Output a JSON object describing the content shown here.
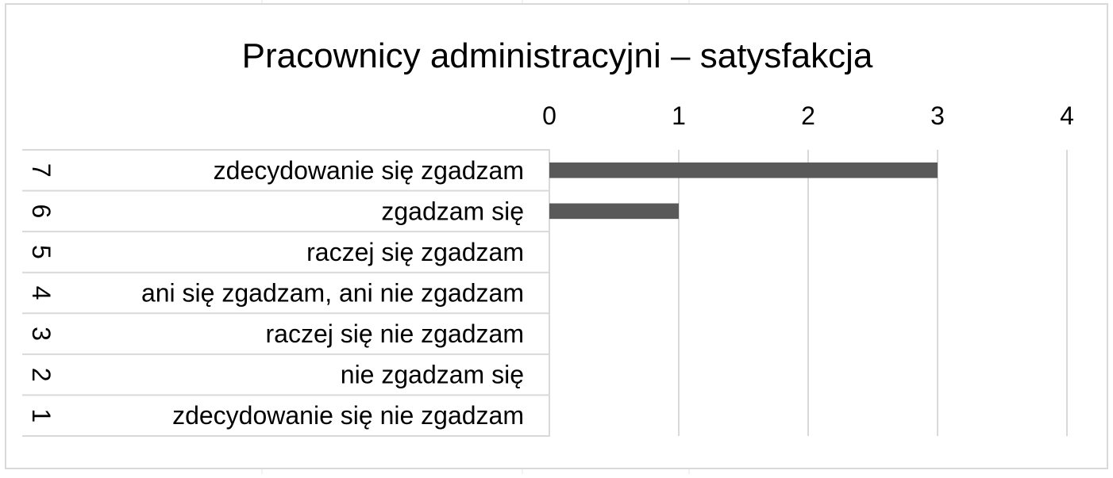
{
  "chart_data": {
    "type": "bar",
    "orientation": "horizontal",
    "title": "Pracownicy administracyjni – satysfakcja",
    "xlabel": "",
    "ylabel": "",
    "xlim": [
      0,
      4
    ],
    "x_ticks": [
      "0",
      "1",
      "2",
      "3",
      "4"
    ],
    "x_axis_position": "top",
    "grid": true,
    "legend": "none",
    "categories": [
      {
        "code": "7",
        "label": "zdecydowanie się zgadzam"
      },
      {
        "code": "6",
        "label": "zgadzam się"
      },
      {
        "code": "5",
        "label": "raczej się zgadzam"
      },
      {
        "code": "4",
        "label": "ani się zgadzam, ani nie zgadzam"
      },
      {
        "code": "3",
        "label": "raczej się nie zgadzam"
      },
      {
        "code": "2",
        "label": "nie zgadzam się"
      },
      {
        "code": "1",
        "label": "zdecydowanie się nie zgadzam"
      }
    ],
    "values": [
      3,
      1,
      0,
      0,
      0,
      0,
      0
    ],
    "colors": {
      "bar": "#595959",
      "gridline": "#d9d9d9",
      "frame": "#d9d9d9",
      "sheet_grid": "#e6e6e6"
    }
  }
}
